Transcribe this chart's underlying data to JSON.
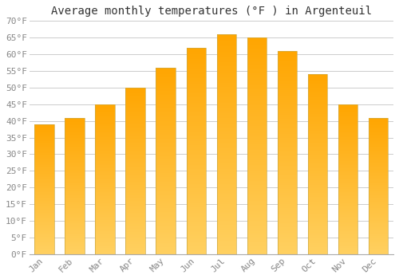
{
  "title": "Average monthly temperatures (°F ) in Argenteuil",
  "months": [
    "Jan",
    "Feb",
    "Mar",
    "Apr",
    "May",
    "Jun",
    "Jul",
    "Aug",
    "Sep",
    "Oct",
    "Nov",
    "Dec"
  ],
  "values": [
    39,
    41,
    45,
    50,
    56,
    62,
    66,
    65,
    61,
    54,
    45,
    41
  ],
  "bar_color_top": "#FFA500",
  "bar_color_bottom": "#FFD060",
  "bar_edge_color": "#b8860b",
  "ylim": [
    0,
    70
  ],
  "yticks": [
    0,
    5,
    10,
    15,
    20,
    25,
    30,
    35,
    40,
    45,
    50,
    55,
    60,
    65,
    70
  ],
  "ytick_labels": [
    "0°F",
    "5°F",
    "10°F",
    "15°F",
    "20°F",
    "25°F",
    "30°F",
    "35°F",
    "40°F",
    "45°F",
    "50°F",
    "55°F",
    "60°F",
    "65°F",
    "70°F"
  ],
  "background_color": "#ffffff",
  "grid_color": "#cccccc",
  "title_fontsize": 10,
  "tick_fontsize": 8,
  "font_family": "monospace"
}
